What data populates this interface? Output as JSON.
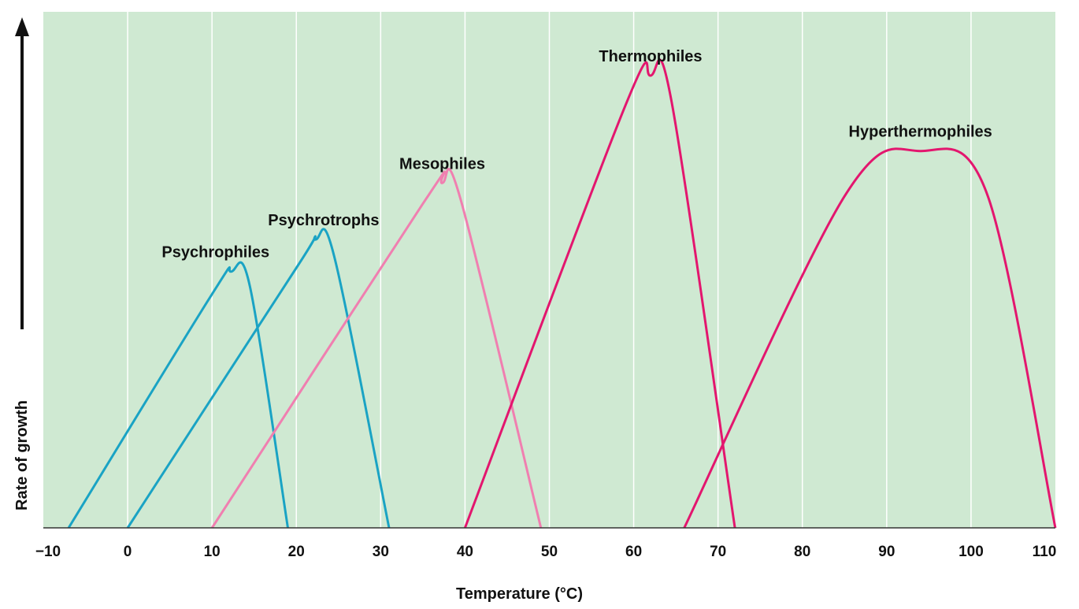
{
  "chart_data": {
    "type": "line",
    "title": "",
    "xlabel": "Temperature (°C)",
    "ylabel": "Rate of growth",
    "xlim": [
      -10,
      110
    ],
    "ylim": [
      0,
      1.2
    ],
    "x_ticks": [
      -10,
      0,
      10,
      20,
      30,
      40,
      50,
      60,
      70,
      80,
      90,
      100,
      110
    ],
    "x_tick_labels": [
      "−10",
      "0",
      "10",
      "20",
      "30",
      "40",
      "50",
      "60",
      "70",
      "80",
      "90",
      "100",
      "110"
    ],
    "grid": "vertical",
    "legend": "none",
    "colors": {
      "plot_background": "#cfe9d2",
      "grid": "#ffffff",
      "psychro": "#1aa3c4",
      "meso": "#f07fb0",
      "thermo": "#e3166e"
    },
    "series": [
      {
        "name": "Psychrophiles",
        "color_key": "psychro",
        "points": [
          [
            -7,
            0
          ],
          [
            10,
            0.62
          ],
          [
            12.3,
            0.68
          ],
          [
            14.5,
            0.64
          ],
          [
            19,
            0
          ]
        ]
      },
      {
        "name": "Psychrotrophs",
        "color_key": "psychro",
        "points": [
          [
            0,
            0
          ],
          [
            20,
            0.69
          ],
          [
            22.3,
            0.765
          ],
          [
            24.5,
            0.72
          ],
          [
            31,
            0
          ]
        ]
      },
      {
        "name": "Mesophiles",
        "color_key": "meso",
        "points": [
          [
            10,
            0
          ],
          [
            35,
            0.86
          ],
          [
            37.3,
            0.915
          ],
          [
            39.5,
            0.87
          ],
          [
            49,
            0
          ]
        ]
      },
      {
        "name": "Thermophiles",
        "color_key": "thermo",
        "points": [
          [
            40,
            0
          ],
          [
            59,
            1.12
          ],
          [
            62,
            1.2
          ],
          [
            64.5,
            1.13
          ],
          [
            72,
            0
          ]
        ]
      },
      {
        "name": "Hyperthermophiles",
        "color_key": "thermo",
        "points": [
          [
            66,
            0
          ],
          [
            85,
            0.88
          ],
          [
            94,
            1.0
          ],
          [
            102,
            0.88
          ],
          [
            110,
            0
          ]
        ]
      }
    ]
  }
}
